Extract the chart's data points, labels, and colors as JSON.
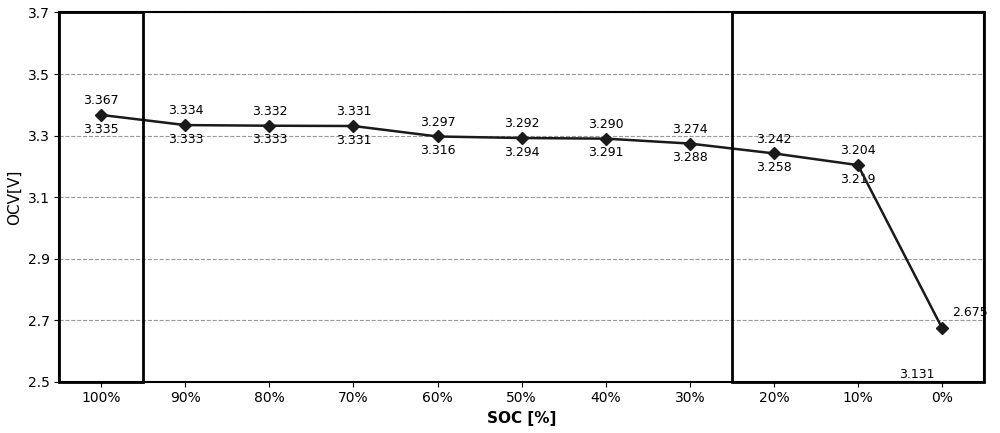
{
  "x_labels": [
    "100%",
    "90%",
    "80%",
    "70%",
    "60%",
    "50%",
    "40%",
    "30%",
    "20%",
    "10%",
    "0%"
  ],
  "x_values": [
    0,
    1,
    2,
    3,
    4,
    5,
    6,
    7,
    8,
    9,
    10
  ],
  "y_values": [
    3.367,
    3.334,
    3.332,
    3.331,
    3.297,
    3.292,
    3.29,
    3.274,
    3.242,
    3.204,
    2.675
  ],
  "upper_labels": [
    "3.367",
    "3.334",
    "3.332",
    "3.331",
    "3.297",
    "3.292",
    "3.290",
    "3.274",
    "3.242",
    "3.204",
    "2.675"
  ],
  "lower_labels": [
    "3.335",
    "3.333",
    "3.333",
    "3.331",
    "3.316",
    "3.294",
    "3.291",
    "3.288",
    "3.258",
    "3.219",
    "3.131"
  ],
  "xlabel": "SOC [%]",
  "ylabel": "OCV[V]",
  "ylim": [
    2.5,
    3.7
  ],
  "yticks": [
    2.5,
    2.7,
    2.9,
    3.1,
    3.3,
    3.5,
    3.7
  ],
  "line_color": "#1a1a1a",
  "marker": "D",
  "marker_color": "#1a1a1a",
  "marker_size": 6,
  "line_width": 1.8,
  "grid_color": "#999999",
  "grid_style": "--",
  "background_color": "#ffffff",
  "label_fontsize": 9,
  "axis_label_fontsize": 11,
  "tick_fontsize": 10
}
